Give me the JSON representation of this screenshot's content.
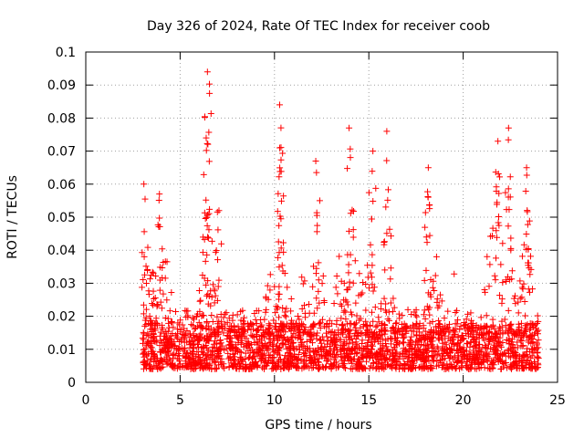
{
  "chart_data": {
    "type": "scatter",
    "title": "Day 326 of 2024, Rate Of TEC Index for receiver coob",
    "xlabel": "GPS time / hours",
    "ylabel": "ROTI / TECUs",
    "xlim": [
      0,
      25
    ],
    "ylim": [
      0,
      0.1
    ],
    "xticks": [
      "0",
      "5",
      "10",
      "15",
      "20",
      "25"
    ],
    "yticks": [
      "0",
      "0.01",
      "0.02",
      "0.03",
      "0.04",
      "0.05",
      "0.06",
      "0.07",
      "0.08",
      "0.09",
      "0.1"
    ],
    "grid": true,
    "marker": "+",
    "color": "#ff0000",
    "series": [
      {
        "x_range": [
          3.0,
          24.0
        ],
        "peaks": [
          {
            "x": 3.1,
            "y": 0.06
          },
          {
            "x": 3.9,
            "y": 0.057
          },
          {
            "x": 6.5,
            "y": 0.094
          },
          {
            "x": 6.4,
            "y": 0.074
          },
          {
            "x": 7.0,
            "y": 0.052
          },
          {
            "x": 10.3,
            "y": 0.084
          },
          {
            "x": 10.3,
            "y": 0.071
          },
          {
            "x": 12.2,
            "y": 0.067
          },
          {
            "x": 14.0,
            "y": 0.077
          },
          {
            "x": 15.2,
            "y": 0.07
          },
          {
            "x": 16.0,
            "y": 0.076
          },
          {
            "x": 18.1,
            "y": 0.065
          },
          {
            "x": 21.9,
            "y": 0.073
          },
          {
            "x": 22.4,
            "y": 0.077
          },
          {
            "x": 23.4,
            "y": 0.065
          }
        ]
      }
    ]
  }
}
